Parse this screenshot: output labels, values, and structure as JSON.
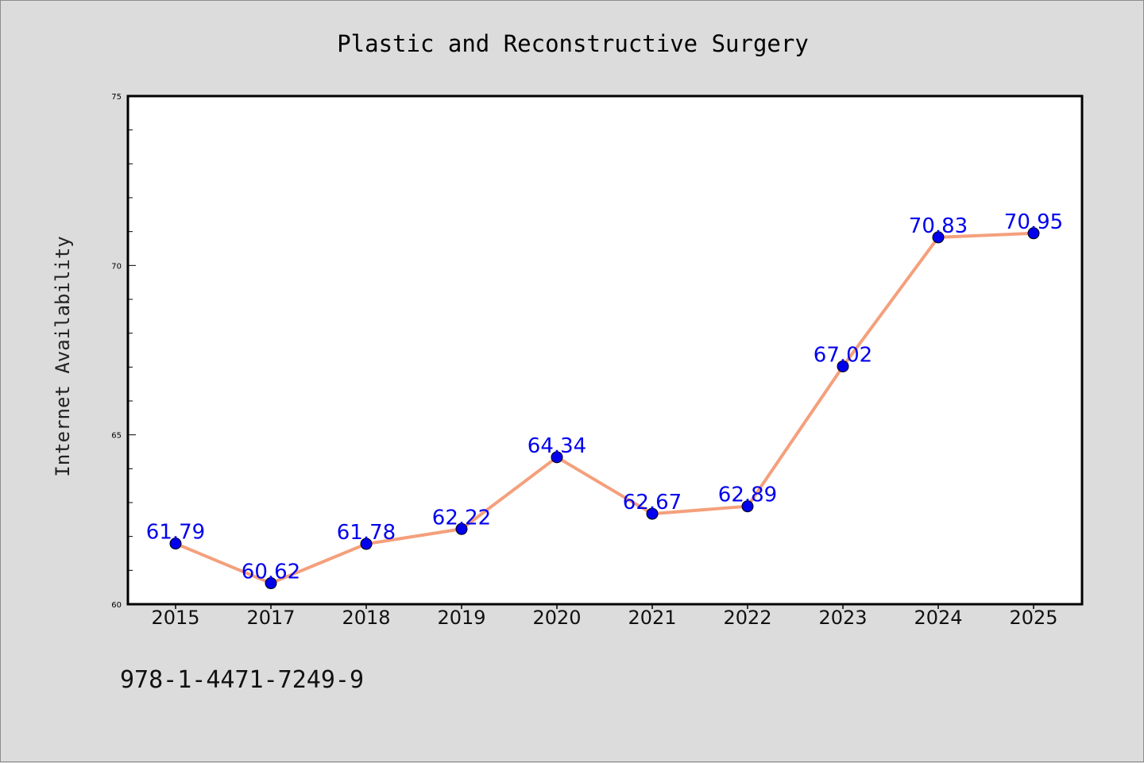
{
  "chart_data": {
    "type": "line",
    "title": "Plastic and Reconstructive Surgery",
    "ylabel": "Internet Availability",
    "xlabel": "",
    "categories": [
      "2015",
      "2017",
      "2018",
      "2019",
      "2020",
      "2021",
      "2022",
      "2023",
      "2024",
      "2025"
    ],
    "values": [
      61.79,
      60.62,
      61.78,
      62.22,
      64.34,
      62.67,
      62.89,
      67.02,
      70.83,
      70.95
    ],
    "data_labels": [
      "61.79",
      "60.62",
      "61.78",
      "62.22",
      "64.34",
      "62.67",
      "62.89",
      "67.02",
      "70.83",
      "70.95"
    ],
    "ylim": [
      60,
      75
    ],
    "yticks": [
      "60",
      "65",
      "70",
      "75"
    ],
    "grid": false,
    "legend": "none",
    "colors": {
      "line": "#f4a07c",
      "marker": "#0000ee",
      "data_label": "#0000ee",
      "background": "#dcdcdc",
      "plot_background": "#ffffff"
    }
  },
  "footer": {
    "isbn": "978-1-4471-7249-9"
  }
}
